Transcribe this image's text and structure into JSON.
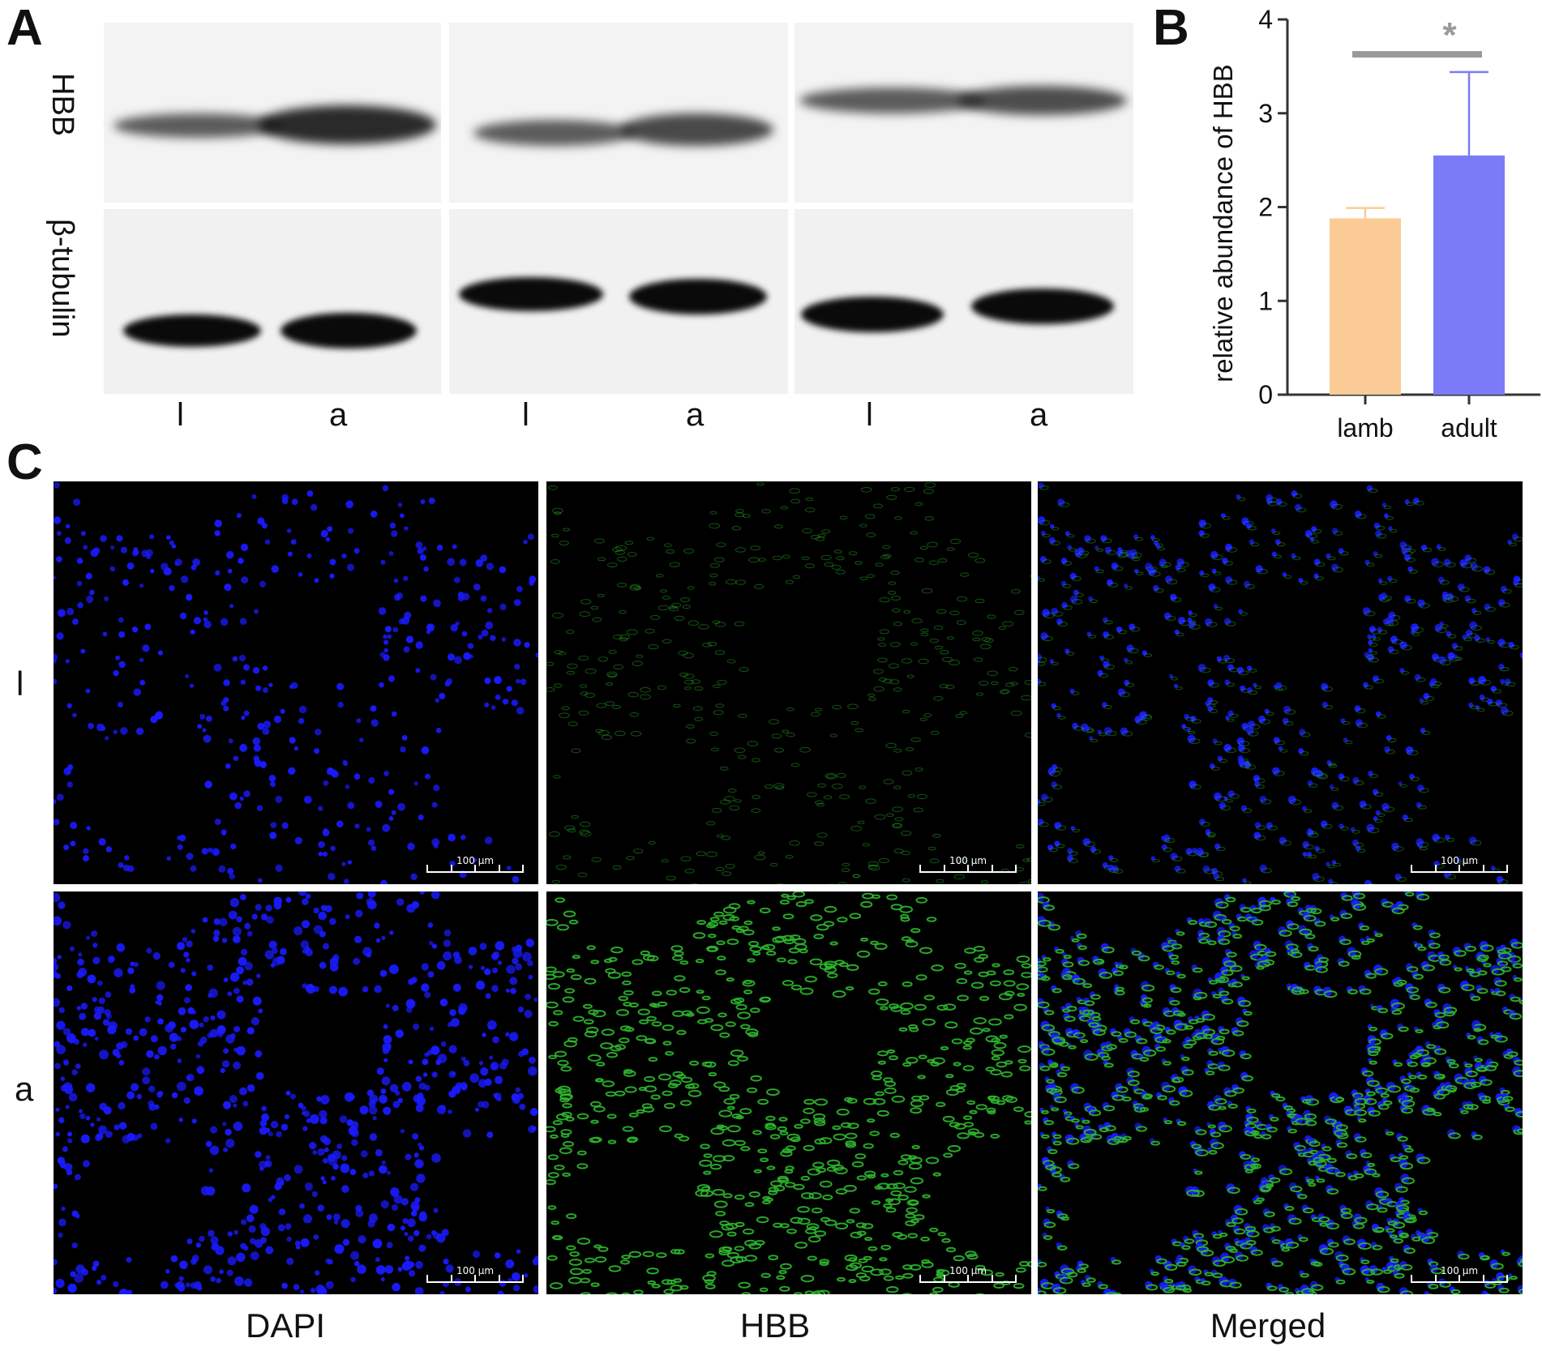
{
  "panelA": {
    "letter": "A",
    "row_labels": [
      "HBB",
      "β-tubulin"
    ],
    "lane_labels": [
      "l",
      "a",
      "l",
      "a",
      "l",
      "a"
    ]
  },
  "panelB": {
    "letter": "B"
  },
  "panelC": {
    "letter": "C",
    "row_labels": [
      "l",
      "a"
    ],
    "col_labels": [
      "DAPI",
      "HBB",
      "Merged"
    ],
    "scale_text": "100 μm",
    "channel_colors": {
      "dapi": "#1a1aff",
      "hbb": "#2db82d"
    }
  },
  "chart_data": {
    "type": "bar",
    "categories": [
      "lamb",
      "adult"
    ],
    "values": [
      1.88,
      2.55
    ],
    "error_upper": [
      1.99,
      3.44
    ],
    "colors": [
      "#fbcb96",
      "#7b7bf7"
    ],
    "ylabel": "relative abundance of HBB",
    "xlabel": "",
    "ylim": [
      0,
      4
    ],
    "yticks": [
      0,
      1,
      2,
      3,
      4
    ],
    "significance": "*",
    "grid": false
  }
}
